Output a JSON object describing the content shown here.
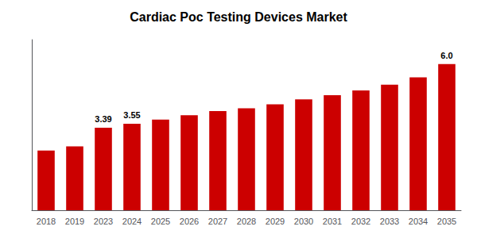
{
  "chart_data": {
    "type": "bar",
    "title": "Cardiac Poc Testing Devices Market",
    "categories": [
      "2018",
      "2019",
      "2023",
      "2024",
      "2025",
      "2026",
      "2027",
      "2028",
      "2029",
      "2030",
      "2031",
      "2032",
      "2033",
      "2034",
      "2035"
    ],
    "values": [
      2.45,
      2.62,
      3.39,
      3.55,
      3.72,
      3.9,
      4.07,
      4.18,
      4.35,
      4.55,
      4.72,
      4.92,
      5.15,
      5.45,
      6.0
    ],
    "value_labels": [
      null,
      null,
      "3.39",
      "3.55",
      null,
      null,
      null,
      null,
      null,
      null,
      null,
      null,
      null,
      null,
      "6.0"
    ],
    "color": "#cc0000",
    "ylim": [
      0,
      7
    ],
    "grid": false,
    "tick_labels": "x"
  }
}
